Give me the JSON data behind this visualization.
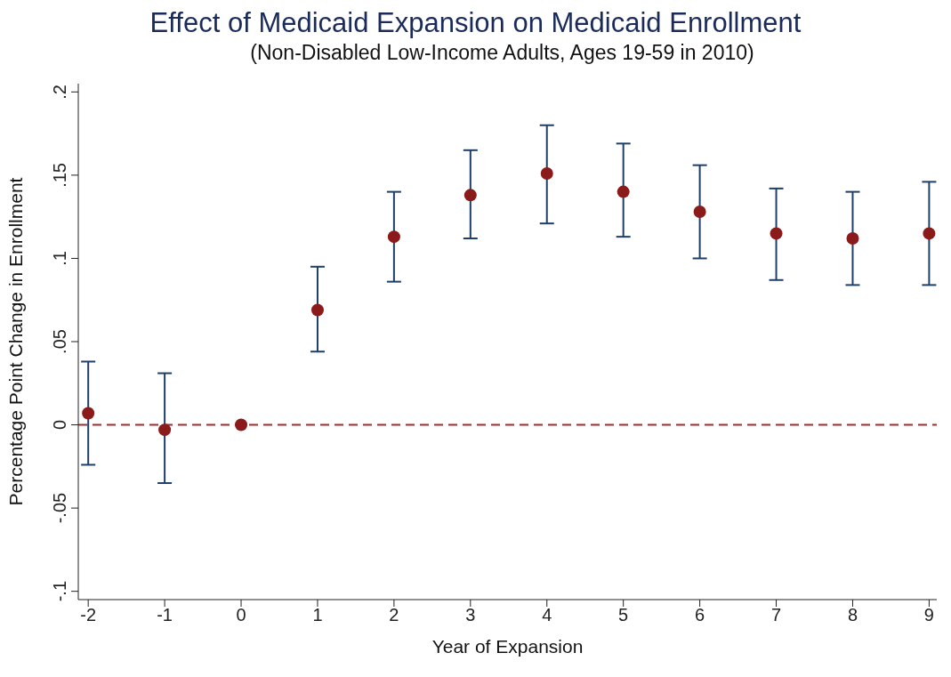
{
  "chart_data": {
    "type": "scatter",
    "title": "Effect of Medicaid Expansion on Medicaid Enrollment",
    "subtitle": "(Non-Disabled Low-Income Adults, Ages 19-59 in 2010)",
    "xlabel": "Year of Expansion",
    "ylabel": "Percentage Point Change in Enrollment",
    "x": [
      -2,
      -1,
      0,
      1,
      2,
      3,
      4,
      5,
      6,
      7,
      8,
      9
    ],
    "values": [
      0.007,
      -0.003,
      0,
      0.069,
      0.113,
      0.138,
      0.151,
      0.14,
      0.128,
      0.115,
      0.112,
      0.115
    ],
    "errors": [
      [
        -0.024,
        0.038
      ],
      [
        -0.035,
        0.031
      ],
      null,
      [
        0.044,
        0.095
      ],
      [
        0.086,
        0.14
      ],
      [
        0.112,
        0.165
      ],
      [
        0.121,
        0.18
      ],
      [
        0.113,
        0.169
      ],
      [
        0.1,
        0.156
      ],
      [
        0.087,
        0.142
      ],
      [
        0.084,
        0.14
      ],
      [
        0.084,
        0.146
      ]
    ],
    "color": "#8b1a1a",
    "marker": "circle",
    "xlim": [
      -2.13,
      9.1
    ],
    "xticks": [
      -2,
      -1,
      0,
      1,
      2,
      3,
      4,
      5,
      6,
      7,
      8,
      9
    ],
    "ylim": [
      -0.105,
      0.205
    ],
    "yticks": [
      {
        "value": -0.1,
        "label": "-.1"
      },
      {
        "value": -0.05,
        "label": "-.05"
      },
      {
        "value": 0,
        "label": "0"
      },
      {
        "value": 0.05,
        "label": ".05"
      },
      {
        "value": 0.1,
        "label": ".1"
      },
      {
        "value": 0.15,
        "label": ".15"
      },
      {
        "value": 0.2,
        "label": ".2"
      }
    ],
    "ref_lines": [
      {
        "axis": "y",
        "value": 0,
        "label": null,
        "color": "#a52a2a",
        "line_style": "dashed"
      }
    ],
    "grid": false,
    "legend": false
  }
}
